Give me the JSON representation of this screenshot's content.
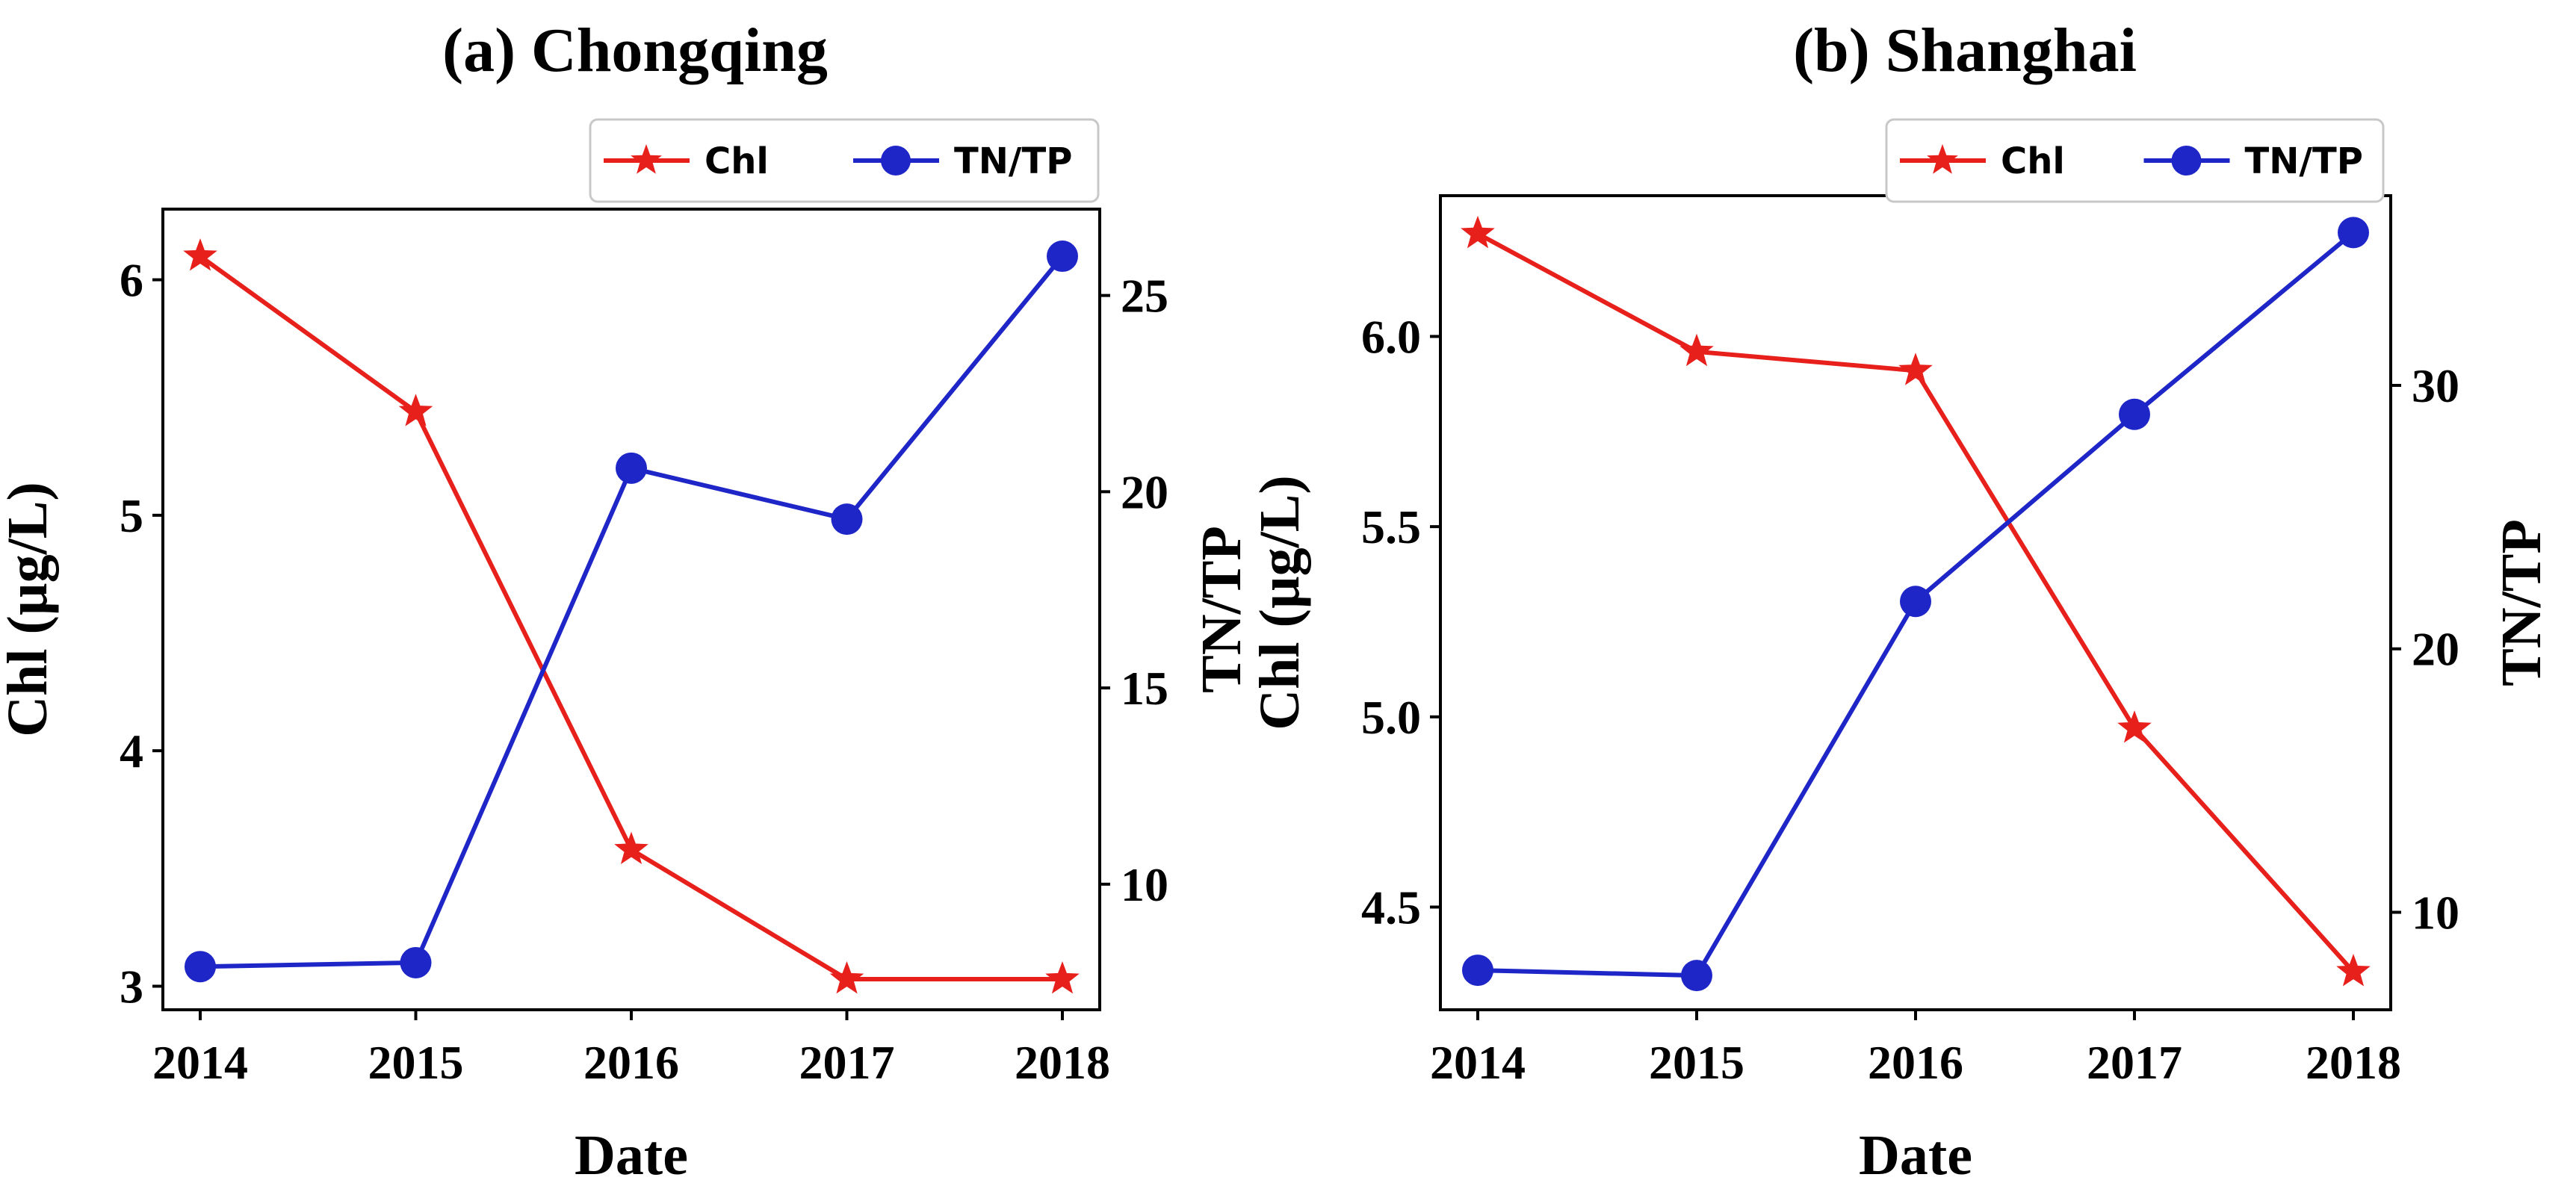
{
  "chart_data": [
    {
      "type": "line",
      "title": "(a) Chongqing",
      "xlabel": "Date",
      "ylabel": "Chl (µg/L)",
      "y2label": "TN/TP",
      "categories": [
        "2014",
        "2015",
        "2016",
        "2017",
        "2018"
      ],
      "series": [
        {
          "name": "Chl",
          "axis": "left",
          "color": "#e8201c",
          "marker": "star",
          "values": [
            6.1,
            5.44,
            3.58,
            3.03,
            3.03
          ]
        },
        {
          "name": "TN/TP",
          "axis": "right",
          "color": "#1f26c8",
          "marker": "circle",
          "values": [
            7.9,
            8.0,
            20.6,
            19.3,
            26.0
          ]
        }
      ],
      "ylim": [
        2.9,
        6.3
      ],
      "y2lim": [
        6.8,
        27.2
      ],
      "yticks": [
        3,
        4,
        5,
        6
      ],
      "y2ticks": [
        10,
        15,
        20,
        25
      ],
      "legend": "top-right"
    },
    {
      "type": "line",
      "title": "(b) Shanghai",
      "xlabel": "Date",
      "ylabel": "Chl (µg/L)",
      "y2label": "TN/TP",
      "categories": [
        "2014",
        "2015",
        "2016",
        "2017",
        "2018"
      ],
      "series": [
        {
          "name": "Chl",
          "axis": "left",
          "color": "#e8201c",
          "marker": "star",
          "values": [
            6.27,
            5.96,
            5.91,
            4.97,
            4.33
          ]
        },
        {
          "name": "TN/TP",
          "axis": "right",
          "color": "#1f26c8",
          "marker": "circle",
          "values": [
            7.8,
            7.6,
            21.8,
            28.9,
            35.8
          ]
        }
      ],
      "ylim": [
        4.23,
        6.37
      ],
      "y2lim": [
        6.3,
        37.2
      ],
      "yticks": [
        4.5,
        5.0,
        5.5,
        6.0
      ],
      "y2ticks": [
        10,
        20,
        30
      ],
      "legend": "top-right"
    }
  ]
}
